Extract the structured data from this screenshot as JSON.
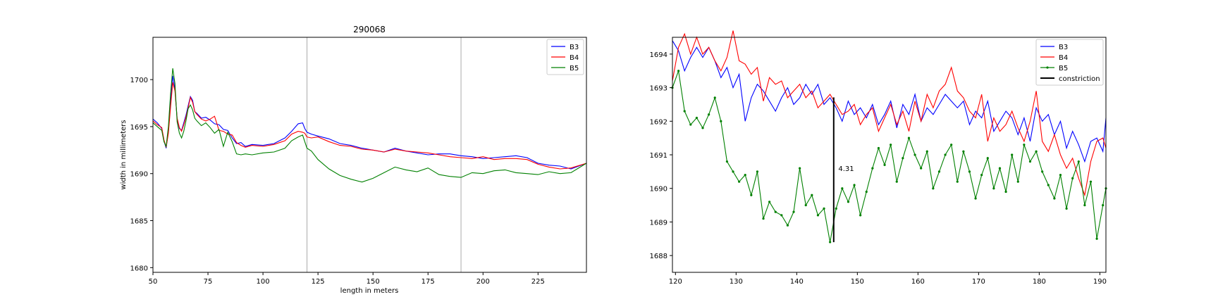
{
  "chart_data": [
    {
      "type": "line",
      "title": "290068",
      "xlabel": "length in meters",
      "ylabel": "width in millimeters",
      "xlim": [
        50,
        247
      ],
      "ylim": [
        1679.5,
        1704.5
      ],
      "xticks": [
        "50",
        "75",
        "100",
        "125",
        "150",
        "175",
        "200",
        "225"
      ],
      "yticks": [
        "1680",
        "1685",
        "1690",
        "1695",
        "1700"
      ],
      "grid": false,
      "legend": "top-right",
      "vlines": [
        120,
        190
      ],
      "series": [
        {
          "name": "B3",
          "color": "#0000ff",
          "x": [
            50,
            52,
            54,
            55,
            56,
            57,
            58,
            59,
            60,
            61,
            62,
            63,
            64,
            65,
            66,
            67,
            68,
            69,
            70,
            72,
            74,
            76,
            78,
            80,
            82,
            84,
            86,
            88,
            90,
            92,
            95,
            100,
            105,
            110,
            113,
            116,
            118,
            119,
            120,
            122,
            125,
            130,
            135,
            140,
            145,
            150,
            155,
            160,
            165,
            170,
            175,
            180,
            185,
            190,
            195,
            200,
            205,
            210,
            215,
            220,
            225,
            230,
            235,
            240,
            247
          ],
          "y": [
            1695.8,
            1695.4,
            1694.8,
            1693.5,
            1692.7,
            1694.5,
            1697.6,
            1700.4,
            1699.0,
            1695.8,
            1694.8,
            1694.6,
            1695.4,
            1696.2,
            1697.2,
            1698.2,
            1697.8,
            1696.6,
            1696.4,
            1695.9,
            1696.0,
            1695.7,
            1695.3,
            1695.2,
            1694.7,
            1694.6,
            1693.8,
            1693.2,
            1693.3,
            1692.9,
            1693.1,
            1693.0,
            1693.2,
            1693.8,
            1694.5,
            1695.3,
            1695.4,
            1694.8,
            1694.4,
            1694.2,
            1694.0,
            1693.7,
            1693.2,
            1693.0,
            1692.7,
            1692.5,
            1692.3,
            1692.7,
            1692.4,
            1692.2,
            1692.0,
            1692.1,
            1692.1,
            1691.9,
            1691.8,
            1691.6,
            1691.7,
            1691.8,
            1691.9,
            1691.7,
            1691.1,
            1690.9,
            1690.8,
            1690.5,
            1691.1
          ]
        },
        {
          "name": "B4",
          "color": "#ff0000",
          "x": [
            50,
            52,
            54,
            55,
            56,
            57,
            58,
            59,
            60,
            61,
            62,
            63,
            64,
            65,
            66,
            67,
            68,
            69,
            70,
            72,
            74,
            76,
            78,
            80,
            82,
            84,
            86,
            88,
            90,
            92,
            95,
            100,
            105,
            110,
            113,
            116,
            118,
            119,
            120,
            122,
            125,
            130,
            135,
            140,
            145,
            150,
            155,
            160,
            165,
            170,
            175,
            180,
            185,
            190,
            195,
            200,
            205,
            210,
            215,
            220,
            225,
            230,
            235,
            240,
            247
          ],
          "y": [
            1695.6,
            1695.2,
            1694.9,
            1693.6,
            1692.8,
            1694.3,
            1697.1,
            1699.7,
            1698.8,
            1695.9,
            1694.9,
            1694.5,
            1695.2,
            1696.0,
            1697.0,
            1698.1,
            1697.6,
            1696.6,
            1696.3,
            1695.8,
            1695.6,
            1695.8,
            1696.1,
            1694.6,
            1694.5,
            1694.2,
            1694.1,
            1693.3,
            1693.0,
            1692.8,
            1693.0,
            1692.9,
            1693.1,
            1693.5,
            1694.2,
            1694.5,
            1694.4,
            1694.3,
            1693.9,
            1693.8,
            1693.9,
            1693.4,
            1693.0,
            1692.9,
            1692.6,
            1692.5,
            1692.3,
            1692.6,
            1692.4,
            1692.3,
            1692.2,
            1692.0,
            1691.8,
            1691.7,
            1691.6,
            1691.8,
            1691.5,
            1691.6,
            1691.6,
            1691.5,
            1691.0,
            1690.7,
            1690.5,
            1690.6,
            1691.1
          ]
        },
        {
          "name": "B5",
          "color": "#008000",
          "x": [
            50,
            52,
            54,
            55,
            56,
            57,
            58,
            59,
            60,
            61,
            62,
            63,
            64,
            65,
            66,
            67,
            68,
            69,
            70,
            72,
            74,
            76,
            78,
            80,
            82,
            84,
            86,
            88,
            90,
            92,
            95,
            100,
            105,
            110,
            113,
            116,
            118,
            119,
            120,
            122,
            125,
            130,
            135,
            140,
            145,
            150,
            155,
            160,
            165,
            170,
            175,
            180,
            185,
            190,
            195,
            200,
            205,
            210,
            215,
            220,
            225,
            230,
            235,
            240,
            247
          ],
          "y": [
            1695.4,
            1695.0,
            1694.6,
            1693.4,
            1692.9,
            1695.0,
            1698.5,
            1701.2,
            1699.6,
            1695.5,
            1694.3,
            1693.8,
            1694.5,
            1695.6,
            1696.9,
            1697.3,
            1696.8,
            1695.9,
            1695.6,
            1695.1,
            1695.4,
            1694.9,
            1694.3,
            1694.7,
            1692.9,
            1694.4,
            1693.4,
            1692.1,
            1692.0,
            1692.1,
            1692.0,
            1692.2,
            1692.3,
            1692.7,
            1693.5,
            1693.9,
            1694.1,
            1693.4,
            1692.7,
            1692.4,
            1691.5,
            1690.5,
            1689.8,
            1689.4,
            1689.1,
            1689.5,
            1690.1,
            1690.7,
            1690.4,
            1690.2,
            1690.6,
            1689.9,
            1689.7,
            1689.6,
            1690.1,
            1690.0,
            1690.3,
            1690.4,
            1690.1,
            1690.0,
            1689.9,
            1690.2,
            1690.0,
            1690.1,
            1691.1
          ]
        }
      ]
    },
    {
      "type": "line",
      "title": "",
      "xlabel": "",
      "ylabel": "",
      "xlim": [
        119.5,
        191
      ],
      "ylim": [
        1687.5,
        1694.5
      ],
      "xticks": [
        "120",
        "130",
        "140",
        "150",
        "160",
        "170",
        "180",
        "190"
      ],
      "yticks": [
        "1688",
        "1689",
        "1690",
        "1691",
        "1692",
        "1693",
        "1694"
      ],
      "grid": false,
      "legend": "top-right",
      "annotation": {
        "text": "4.31",
        "x": 146.4,
        "y": 1690.6
      },
      "series": [
        {
          "name": "B3",
          "color": "#0000ff",
          "x": [
            119.5,
            120.5,
            121.5,
            122.5,
            123.5,
            124.5,
            125.5,
            126.5,
            127.5,
            128.5,
            129.5,
            130.5,
            131.5,
            132.5,
            133.5,
            134.5,
            135.5,
            136.5,
            137.5,
            138.5,
            139.5,
            140.5,
            141.5,
            142.5,
            143.5,
            144.5,
            145.5,
            146.5,
            147.5,
            148.5,
            149.5,
            150.5,
            151.5,
            152.5,
            153.5,
            154.5,
            155.5,
            156.5,
            157.5,
            158.5,
            159.5,
            160.5,
            161.5,
            162.5,
            163.5,
            164.5,
            165.5,
            166.5,
            167.5,
            168.5,
            169.5,
            170.5,
            171.5,
            172.5,
            173.5,
            174.5,
            175.5,
            176.5,
            177.5,
            178.5,
            179.5,
            180.5,
            181.5,
            182.5,
            183.5,
            184.5,
            185.5,
            186.5,
            187.5,
            188.5,
            189.5,
            190.5,
            191
          ],
          "y": [
            1694.4,
            1694.1,
            1693.5,
            1693.9,
            1694.2,
            1693.9,
            1694.2,
            1693.8,
            1693.3,
            1693.6,
            1693.0,
            1693.4,
            1692.0,
            1692.7,
            1693.1,
            1692.9,
            1692.6,
            1692.3,
            1692.7,
            1693.0,
            1692.5,
            1692.7,
            1693.1,
            1692.8,
            1693.1,
            1692.5,
            1692.7,
            1692.4,
            1692.0,
            1692.6,
            1692.2,
            1692.4,
            1692.1,
            1692.5,
            1691.9,
            1692.2,
            1692.6,
            1691.8,
            1692.5,
            1692.2,
            1692.8,
            1692.0,
            1692.4,
            1692.2,
            1692.5,
            1692.8,
            1692.6,
            1692.4,
            1692.6,
            1691.9,
            1692.3,
            1692.1,
            1692.6,
            1691.7,
            1692.0,
            1692.3,
            1692.1,
            1691.6,
            1692.1,
            1691.4,
            1692.4,
            1692.0,
            1692.2,
            1691.6,
            1692.0,
            1691.2,
            1691.7,
            1691.3,
            1690.8,
            1691.4,
            1691.5,
            1691.1,
            1692.1
          ]
        },
        {
          "name": "B4",
          "color": "#ff0000",
          "x": [
            119.5,
            120.5,
            121.5,
            122.5,
            123.5,
            124.5,
            125.5,
            126.5,
            127.5,
            128.5,
            129.5,
            130.5,
            131.5,
            132.5,
            133.5,
            134.5,
            135.5,
            136.5,
            137.5,
            138.5,
            139.5,
            140.5,
            141.5,
            142.5,
            143.5,
            144.5,
            145.5,
            146.5,
            147.5,
            148.5,
            149.5,
            150.5,
            151.5,
            152.5,
            153.5,
            154.5,
            155.5,
            156.5,
            157.5,
            158.5,
            159.5,
            160.5,
            161.5,
            162.5,
            163.5,
            164.5,
            165.5,
            166.5,
            167.5,
            168.5,
            169.5,
            170.5,
            171.5,
            172.5,
            173.5,
            174.5,
            175.5,
            176.5,
            177.5,
            178.5,
            179.5,
            180.5,
            181.5,
            182.5,
            183.5,
            184.5,
            185.5,
            186.5,
            187.5,
            188.5,
            189.5,
            190.5,
            191
          ],
          "y": [
            1693.2,
            1694.2,
            1694.6,
            1694.0,
            1694.5,
            1694.0,
            1694.2,
            1693.8,
            1693.5,
            1693.9,
            1694.7,
            1693.8,
            1693.7,
            1693.4,
            1693.6,
            1692.6,
            1693.3,
            1693.1,
            1693.2,
            1692.7,
            1692.9,
            1693.1,
            1692.7,
            1692.9,
            1692.4,
            1692.6,
            1692.8,
            1692.5,
            1692.2,
            1692.3,
            1692.5,
            1691.9,
            1692.2,
            1692.4,
            1691.7,
            1692.1,
            1692.5,
            1691.9,
            1692.3,
            1691.7,
            1692.6,
            1692.0,
            1692.8,
            1692.4,
            1692.9,
            1693.1,
            1693.6,
            1692.9,
            1692.7,
            1692.3,
            1692.1,
            1692.8,
            1691.4,
            1692.1,
            1691.7,
            1691.9,
            1692.3,
            1691.8,
            1691.4,
            1692.0,
            1692.9,
            1691.4,
            1691.1,
            1691.6,
            1691.0,
            1690.6,
            1690.9,
            1690.3,
            1689.8,
            1690.8,
            1691.4,
            1691.5,
            1691.2
          ]
        },
        {
          "name": "B5",
          "color": "#008000",
          "x": [
            119.5,
            120.5,
            121.5,
            122.5,
            123.5,
            124.5,
            125.5,
            126.5,
            127.5,
            128.5,
            129.5,
            130.5,
            131.5,
            132.5,
            133.5,
            134.5,
            135.5,
            136.5,
            137.5,
            138.5,
            139.5,
            140.5,
            141.5,
            142.5,
            143.5,
            144.5,
            145.5,
            146.5,
            147.5,
            148.5,
            149.5,
            150.5,
            151.5,
            152.5,
            153.5,
            154.5,
            155.5,
            156.5,
            157.5,
            158.5,
            159.5,
            160.5,
            161.5,
            162.5,
            163.5,
            164.5,
            165.5,
            166.5,
            167.5,
            168.5,
            169.5,
            170.5,
            171.5,
            172.5,
            173.5,
            174.5,
            175.5,
            176.5,
            177.5,
            178.5,
            179.5,
            180.5,
            181.5,
            182.5,
            183.5,
            184.5,
            185.5,
            186.5,
            187.5,
            188.5,
            189.5,
            190.5,
            191
          ],
          "y": [
            1693.0,
            1693.5,
            1692.3,
            1691.9,
            1692.1,
            1691.8,
            1692.2,
            1692.7,
            1692.0,
            1690.8,
            1690.5,
            1690.2,
            1690.4,
            1689.8,
            1690.5,
            1689.1,
            1689.6,
            1689.3,
            1689.2,
            1688.9,
            1689.3,
            1690.6,
            1689.5,
            1689.8,
            1689.2,
            1689.4,
            1688.4,
            1689.4,
            1690.0,
            1689.6,
            1690.1,
            1689.2,
            1689.9,
            1690.6,
            1691.2,
            1690.7,
            1691.3,
            1690.2,
            1690.9,
            1691.5,
            1691.0,
            1690.6,
            1691.1,
            1690.0,
            1690.5,
            1691.0,
            1691.3,
            1690.2,
            1691.1,
            1690.5,
            1689.7,
            1690.4,
            1690.9,
            1690.0,
            1690.6,
            1689.9,
            1691.0,
            1690.2,
            1691.3,
            1690.8,
            1691.1,
            1690.5,
            1690.1,
            1689.7,
            1690.4,
            1689.4,
            1690.3,
            1690.8,
            1689.5,
            1690.2,
            1688.5,
            1689.5,
            1690.0
          ]
        },
        {
          "name": "constriction",
          "color": "#000000",
          "x": [
            146.1,
            146.1
          ],
          "y": [
            1688.4,
            1692.71
          ]
        }
      ]
    }
  ]
}
